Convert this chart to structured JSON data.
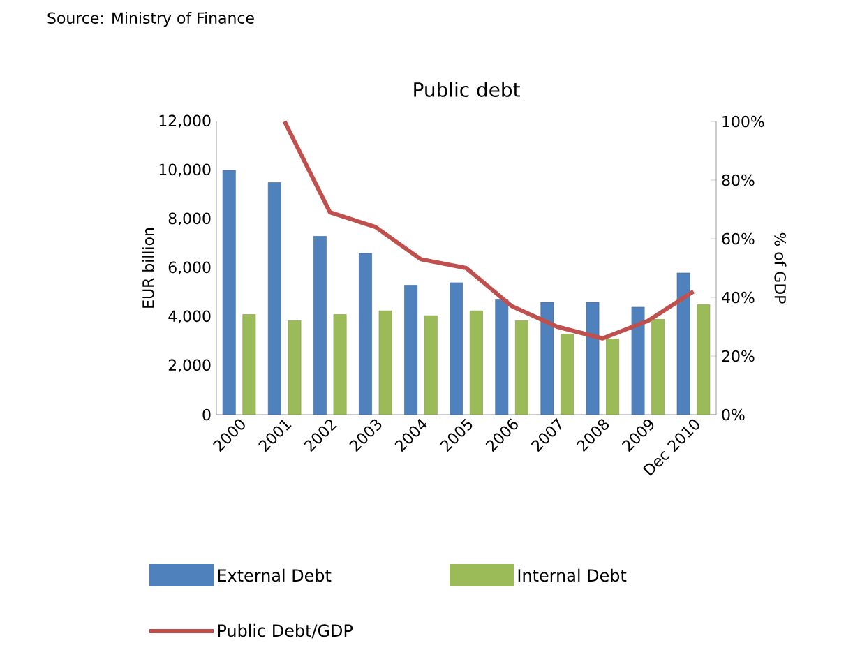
{
  "chart_data": {
    "type": "bar",
    "title": "Public debt",
    "ylabel": "EUR billion",
    "y2label": "% of GDP",
    "annotations": [
      "Source: Ministry of Finance"
    ],
    "categories": [
      "2000",
      "2001",
      "2002",
      "2003",
      "2004",
      "2005",
      "2006",
      "2007",
      "2008",
      "2009",
      "Dec 2010"
    ],
    "series": [
      {
        "name": "External Debt",
        "color": "#4f81bd",
        "values": [
          10000,
          9500,
          7300,
          6600,
          5300,
          5400,
          4700,
          4600,
          4600,
          4400,
          5800
        ]
      },
      {
        "name": "Internal Debt",
        "color": "#9bbb59",
        "values": [
          4100,
          3850,
          4100,
          4250,
          4050,
          4250,
          3850,
          3300,
          3100,
          3900,
          4500
        ]
      },
      {
        "name": "Public Debt/GDP",
        "type": "line",
        "axis": "y2",
        "color": "#c0504d",
        "values": [
          null,
          100,
          69,
          64,
          53,
          50,
          37,
          30,
          26,
          32,
          42
        ]
      }
    ],
    "ylim": [
      0,
      12000
    ],
    "yticks": [
      {
        "value": 0,
        "label": "0"
      },
      {
        "value": 2000,
        "label": "2,000"
      },
      {
        "value": 4000,
        "label": "4,000"
      },
      {
        "value": 6000,
        "label": "6,000"
      },
      {
        "value": 8000,
        "label": "8,000"
      },
      {
        "value": 10000,
        "label": "10,000"
      },
      {
        "value": 12000,
        "label": "12,000"
      }
    ],
    "y2lim": [
      0,
      100
    ],
    "y2ticks": [
      {
        "value": 0,
        "label": "0%"
      },
      {
        "value": 20,
        "label": "20%"
      },
      {
        "value": 40,
        "label": "40%"
      },
      {
        "value": 60,
        "label": "60%"
      },
      {
        "value": 80,
        "label": "80%"
      },
      {
        "value": 100,
        "label": "100%"
      }
    ],
    "legend": "bottom",
    "grid": false
  }
}
